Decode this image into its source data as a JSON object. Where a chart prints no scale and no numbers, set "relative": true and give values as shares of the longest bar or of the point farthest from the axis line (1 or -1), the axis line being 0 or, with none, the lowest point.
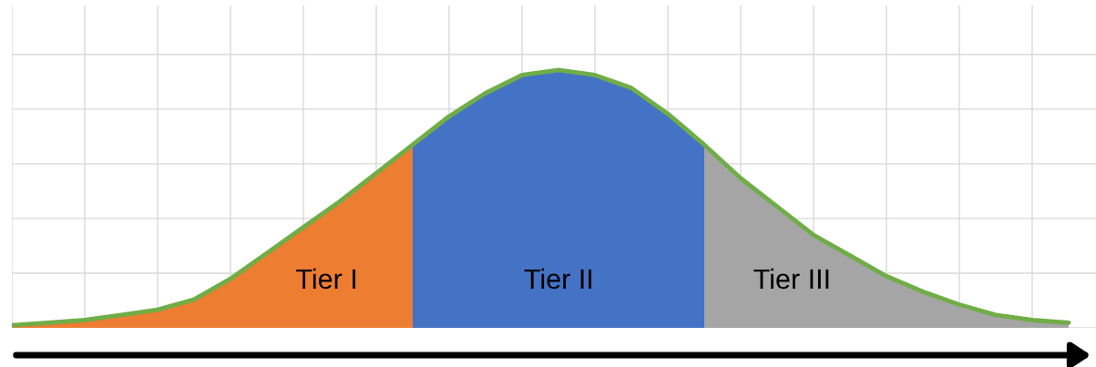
{
  "chart_data": {
    "type": "area",
    "relative": true,
    "grid": true,
    "legend": false,
    "categories": [
      null,
      null,
      null,
      null,
      null,
      null,
      null,
      null,
      null,
      null,
      null,
      null,
      null,
      null,
      null,
      null,
      null,
      null,
      null,
      null,
      null,
      null,
      null,
      null,
      null,
      null,
      null,
      null,
      null,
      null
    ],
    "series": [
      {
        "name": "Tier I",
        "color": "#ed7d31",
        "values": [
          0.01,
          0.02,
          0.03,
          0.05,
          0.07,
          0.11,
          0.19,
          0.29,
          0.39,
          0.49,
          0.6,
          0.71,
          null,
          null,
          null,
          null,
          null,
          null,
          null,
          null,
          null,
          null,
          null,
          null,
          null,
          null,
          null,
          null,
          null,
          null
        ]
      },
      {
        "name": "Tier II",
        "color": "#4472c4",
        "values": [
          null,
          null,
          null,
          null,
          null,
          null,
          null,
          null,
          null,
          null,
          null,
          0.71,
          0.82,
          0.91,
          0.98,
          1,
          0.98,
          0.93,
          0.83,
          0.71,
          null,
          null,
          null,
          null,
          null,
          null,
          null,
          null,
          null,
          null
        ]
      },
      {
        "name": "Tier III",
        "color": "#a5a5a5",
        "values": [
          null,
          null,
          null,
          null,
          null,
          null,
          null,
          null,
          null,
          null,
          null,
          null,
          null,
          null,
          null,
          null,
          null,
          null,
          null,
          0.71,
          0.58,
          0.47,
          0.36,
          0.28,
          0.2,
          0.14,
          0.09,
          0.05,
          0.03,
          0.02
        ]
      },
      {
        "type": "line",
        "color": "#70ad47",
        "values": [
          0.01,
          0.02,
          0.03,
          0.05,
          0.07,
          0.11,
          0.19,
          0.29,
          0.39,
          0.49,
          0.6,
          0.71,
          0.82,
          0.91,
          0.98,
          1,
          0.98,
          0.93,
          0.83,
          0.71,
          0.58,
          0.47,
          0.36,
          0.28,
          0.2,
          0.14,
          0.09,
          0.05,
          0.03,
          0.02
        ]
      }
    ]
  }
}
